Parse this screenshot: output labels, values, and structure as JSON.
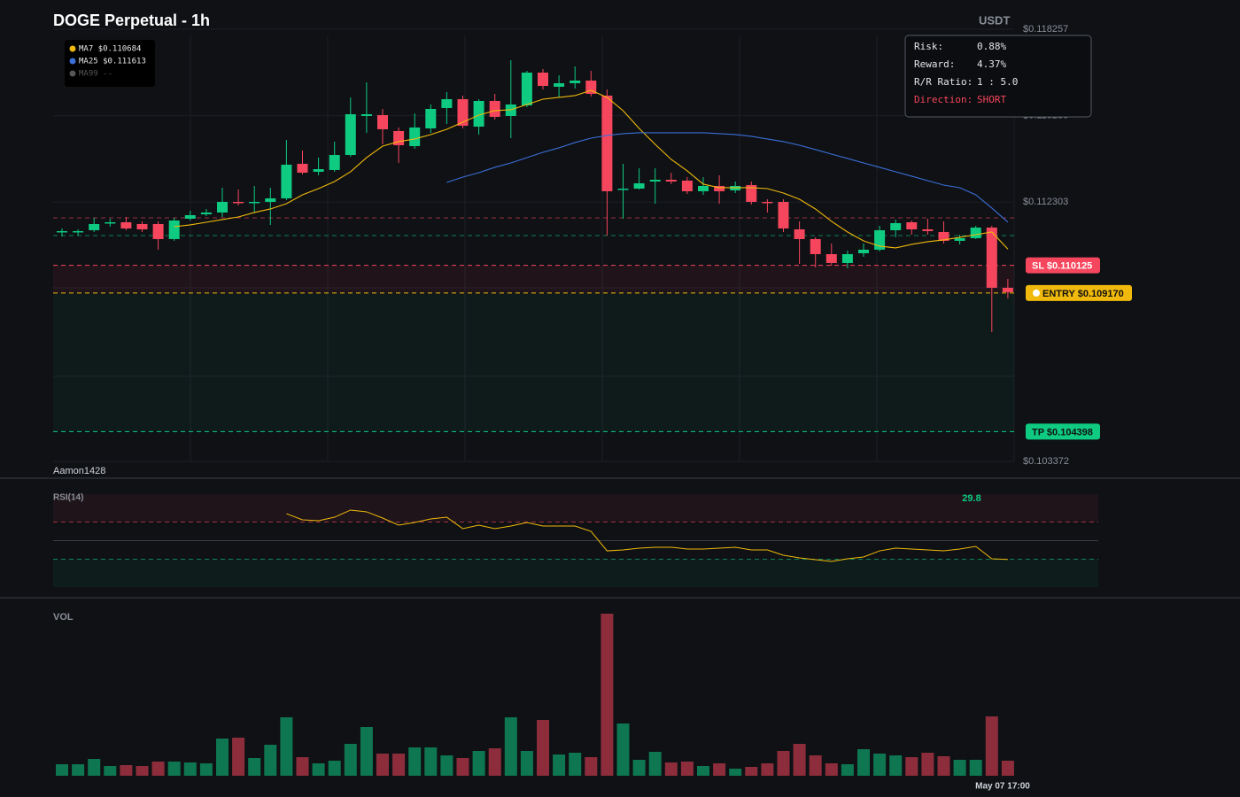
{
  "chart_data": [
    {
      "type": "candlestick",
      "title": "DOGE Perpetual - 1h",
      "currency": "USDT",
      "watermark": "Aamon1428",
      "open": [
        0.111273,
        0.111273,
        0.111334,
        0.111578,
        0.111608,
        0.111547,
        0.111547,
        0.111029,
        0.11173,
        0.111883,
        0.111944,
        0.11231,
        0.112279,
        0.11231,
        0.112432,
        0.113621,
        0.113347,
        0.113408,
        0.113926,
        0.115268,
        0.115299,
        0.11475,
        0.114231,
        0.114841,
        0.115543,
        0.115848,
        0.114902,
        0.115787,
        0.115268,
        0.115634,
        0.116763,
        0.116275,
        0.116397,
        0.116488,
        0.11597,
        0.112737,
        0.112767,
        0.113011,
        0.113072,
        0.113042,
        0.112676,
        0.112859,
        0.112706,
        0.112889,
        0.11231,
        0.11231,
        0.111364,
        0.111029,
        0.11051,
        0.110205,
        0.110541,
        0.110663,
        0.111334,
        0.111608,
        0.111364,
        0.111273,
        0.110968,
        0.111059,
        0.111425,
        0.109351
      ],
      "high": [
        0.111395,
        0.111364,
        0.111761,
        0.11173,
        0.111791,
        0.111639,
        0.111639,
        0.111761,
        0.112005,
        0.112066,
        0.112798,
        0.112737,
        0.112859,
        0.112798,
        0.114445,
        0.114079,
        0.113835,
        0.114384,
        0.115909,
        0.116427,
        0.115512,
        0.114872,
        0.11536,
        0.115665,
        0.116092,
        0.11597,
        0.115848,
        0.116031,
        0.11719,
        0.116824,
        0.116885,
        0.116671,
        0.116976,
        0.116824,
        0.116183,
        0.113621,
        0.113469,
        0.113469,
        0.113316,
        0.113164,
        0.113164,
        0.113225,
        0.113011,
        0.113011,
        0.112401,
        0.112401,
        0.111639,
        0.11109,
        0.110876,
        0.110632,
        0.110876,
        0.111486,
        0.1117,
        0.111669,
        0.11173,
        0.111639,
        0.111181,
        0.111486,
        0.111486,
        0.109656
      ],
      "low": [
        0.11112,
        0.111151,
        0.111273,
        0.111456,
        0.111334,
        0.111273,
        0.110663,
        0.110968,
        0.111669,
        0.111822,
        0.111791,
        0.112188,
        0.111944,
        0.111517,
        0.112371,
        0.113255,
        0.113225,
        0.113347,
        0.113865,
        0.114689,
        0.114292,
        0.113652,
        0.11414,
        0.114689,
        0.114994,
        0.114841,
        0.114628,
        0.115146,
        0.114506,
        0.115573,
        0.116183,
        0.115909,
        0.116214,
        0.115939,
        0.111151,
        0.11173,
        0.112737,
        0.112249,
        0.11292,
        0.112584,
        0.112554,
        0.112249,
        0.112615,
        0.112218,
        0.111944,
        0.111273,
        0.110175,
        0.110053,
        0.110114,
        0.110022,
        0.110419,
        0.110602,
        0.11109,
        0.111181,
        0.111181,
        0.110876,
        0.110846,
        0.111029,
        0.107826,
        0.108985
      ],
      "close": [
        0.111303,
        0.111303,
        0.111547,
        0.111608,
        0.111395,
        0.111364,
        0.111029,
        0.111669,
        0.111852,
        0.111944,
        0.11231,
        0.112279,
        0.11231,
        0.112432,
        0.113591,
        0.113316,
        0.113438,
        0.113926,
        0.115329,
        0.115329,
        0.114811,
        0.114262,
        0.114872,
        0.115512,
        0.115848,
        0.114933,
        0.115787,
        0.115238,
        0.115665,
        0.116763,
        0.116305,
        0.116397,
        0.116488,
        0.116031,
        0.112676,
        0.112767,
        0.11295,
        0.113072,
        0.113011,
        0.112676,
        0.112859,
        0.112676,
        0.112859,
        0.11231,
        0.112279,
        0.111395,
        0.111029,
        0.11051,
        0.110205,
        0.11051,
        0.110663,
        0.111334,
        0.111578,
        0.111364,
        0.111303,
        0.110968,
        0.111059,
        0.111425,
        0.109351,
        0.109199
      ],
      "up_color": "#0ecb81",
      "down_color": "#f6465d",
      "ylim": [
        0.103372,
        0.118257
      ],
      "yticks": [
        {
          "value": 0.118257,
          "label": "$0.118257"
        },
        {
          "value": 0.11528,
          "label": "$0.115280"
        },
        {
          "value": 0.112303,
          "label": "$0.112303"
        },
        {
          "value": 0.103372,
          "label": "$0.103372"
        }
      ],
      "grid": true,
      "series": [
        {
          "name": "MA7 $0.110684",
          "color": "#f0b90b",
          "values": [
            null,
            null,
            null,
            null,
            null,
            null,
            null,
            0.111456,
            0.111517,
            0.111608,
            0.1117,
            0.111791,
            0.111944,
            0.112066,
            0.112249,
            0.112554,
            0.112767,
            0.113011,
            0.113347,
            0.113835,
            0.114231,
            0.114384,
            0.114476,
            0.114628,
            0.114811,
            0.115055,
            0.115299,
            0.115452,
            0.115482,
            0.115665,
            0.115848,
            0.115909,
            0.11597,
            0.116153,
            0.115909,
            0.115452,
            0.114841,
            0.114292,
            0.113774,
            0.113378,
            0.11292,
            0.112798,
            0.112798,
            0.112798,
            0.112767,
            0.112615,
            0.112401,
            0.112066,
            0.111639,
            0.111273,
            0.110968,
            0.110785,
            0.110724,
            0.110846,
            0.110938,
            0.110999,
            0.11109,
            0.111181,
            0.111273,
            0.110684
          ]
        },
        {
          "name": "MA25 $0.111613",
          "color": "#3b6fd8",
          "values": [
            null,
            null,
            null,
            null,
            null,
            null,
            null,
            null,
            null,
            null,
            null,
            null,
            null,
            null,
            null,
            null,
            null,
            null,
            null,
            null,
            null,
            null,
            null,
            null,
            0.112981,
            0.113164,
            0.113316,
            0.1135,
            0.113652,
            0.113835,
            0.114018,
            0.114171,
            0.114354,
            0.114506,
            0.114598,
            0.114659,
            0.114689,
            0.114689,
            0.114689,
            0.114689,
            0.114689,
            0.114659,
            0.114628,
            0.114567,
            0.114476,
            0.114384,
            0.114262,
            0.11411,
            0.113957,
            0.113805,
            0.113652,
            0.1135,
            0.113347,
            0.113195,
            0.113042,
            0.112889,
            0.112798,
            0.112554,
            0.112097,
            0.111613
          ]
        },
        {
          "name": "MA99 --",
          "color": "#555555"
        }
      ],
      "levels": [
        {
          "value": 0.110125,
          "label": "SL $0.110125",
          "color": "#f6465d"
        },
        {
          "value": 0.10917,
          "label": "ENTRY $0.109170",
          "color": "#f0b90b"
        },
        {
          "value": 0.104398,
          "label": "TP $0.104398",
          "color": "#0ecb81"
        }
      ],
      "risk_box": {
        "rows": [
          [
            "Risk:",
            "0.88%"
          ],
          [
            "Reward:",
            "4.37%"
          ],
          [
            "R/R Ratio:",
            "1 : 5.0"
          ],
          [
            "Direction:",
            "SHORT"
          ]
        ]
      }
    },
    {
      "type": "line",
      "title": "RSI(14)",
      "color": "#f0b90b",
      "ylim": [
        0,
        100
      ],
      "levels": [
        70,
        50,
        30
      ],
      "values": [
        null,
        null,
        null,
        null,
        null,
        null,
        null,
        null,
        null,
        null,
        null,
        null,
        null,
        null,
        79.0,
        72.4,
        71.4,
        75.2,
        82.9,
        81.0,
        74.3,
        66.7,
        69.5,
        73.3,
        75.2,
        62.9,
        66.7,
        62.9,
        65.7,
        69.5,
        65.7,
        65.7,
        65.7,
        60.0,
        39.0,
        40.0,
        41.9,
        42.9,
        42.9,
        41.0,
        41.0,
        41.9,
        42.9,
        40.0,
        40.0,
        34.3,
        31.4,
        29.5,
        27.6,
        30.5,
        32.4,
        39.0,
        41.9,
        41.0,
        40.0,
        39.0,
        41.0,
        43.8,
        30.5,
        29.8
      ]
    },
    {
      "type": "bar",
      "title": "VOL",
      "ylim": [
        0,
        200
      ],
      "last_time": "May 07 17:00",
      "values": [
        13,
        13,
        19,
        11,
        12,
        11,
        16,
        16,
        15,
        14,
        42,
        43,
        20,
        35,
        66,
        21,
        14,
        17,
        36,
        55,
        25,
        25,
        32,
        32,
        23,
        20,
        28,
        31,
        66,
        28,
        63,
        24,
        26,
        21,
        183,
        59,
        18,
        27,
        15,
        16,
        11,
        14,
        8,
        10,
        14,
        28,
        36,
        23,
        14,
        13,
        30,
        25,
        23,
        21,
        26,
        22,
        18,
        18,
        67,
        17
      ]
    }
  ]
}
